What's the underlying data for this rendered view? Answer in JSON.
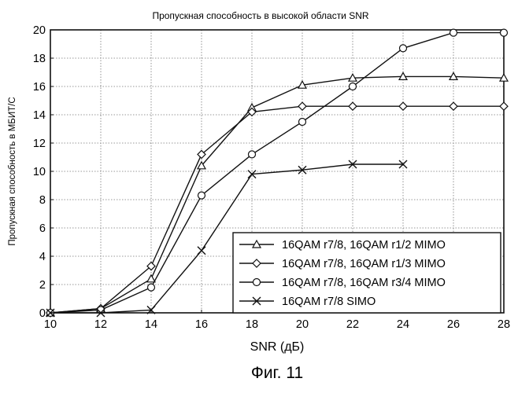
{
  "chart_data": {
    "type": "line",
    "title": "Пропускная способность в высокой области SNR",
    "xlabel": "SNR (дБ)",
    "ylabel": "Пропускная способность в МБИТ/С",
    "caption": "Фиг. 11",
    "xlim": [
      10,
      28
    ],
    "ylim": [
      0,
      20
    ],
    "x_ticks": [
      10,
      12,
      14,
      16,
      18,
      20,
      22,
      24,
      26,
      28
    ],
    "y_ticks": [
      0,
      2,
      4,
      6,
      8,
      10,
      12,
      14,
      16,
      18,
      20
    ],
    "grid": true,
    "legend_position": "bottom-right",
    "series": [
      {
        "name": "16QAM r7/8, 16QAM r1/2 MIMO",
        "marker": "triangle",
        "points": [
          [
            10,
            0
          ],
          [
            12,
            0.3
          ],
          [
            14,
            2.4
          ],
          [
            16,
            10.4
          ],
          [
            18,
            14.5
          ],
          [
            20,
            16.1
          ],
          [
            22,
            16.6
          ],
          [
            24,
            16.7
          ],
          [
            26,
            16.7
          ],
          [
            28,
            16.6
          ]
        ]
      },
      {
        "name": "16QAM r7/8, 16QAM r1/3 MIMO",
        "marker": "diamond",
        "points": [
          [
            10,
            0
          ],
          [
            12,
            0.3
          ],
          [
            14,
            3.3
          ],
          [
            16,
            11.2
          ],
          [
            18,
            14.2
          ],
          [
            20,
            14.6
          ],
          [
            22,
            14.6
          ],
          [
            24,
            14.6
          ],
          [
            26,
            14.6
          ],
          [
            28,
            14.6
          ]
        ]
      },
      {
        "name": "16QAM r7/8, 16QAM r3/4 MIMO",
        "marker": "circle",
        "points": [
          [
            10,
            0
          ],
          [
            12,
            0.2
          ],
          [
            14,
            1.8
          ],
          [
            16,
            8.3
          ],
          [
            18,
            11.2
          ],
          [
            20,
            13.5
          ],
          [
            22,
            16.0
          ],
          [
            24,
            18.7
          ],
          [
            26,
            19.8
          ],
          [
            28,
            19.8
          ]
        ]
      },
      {
        "name": "16QAM r7/8 SIMO",
        "marker": "x",
        "points": [
          [
            10,
            0
          ],
          [
            12,
            0
          ],
          [
            14,
            0.2
          ],
          [
            16,
            4.4
          ],
          [
            18,
            9.8
          ],
          [
            20,
            10.1
          ],
          [
            22,
            10.5
          ],
          [
            24,
            10.5
          ]
        ]
      }
    ]
  }
}
